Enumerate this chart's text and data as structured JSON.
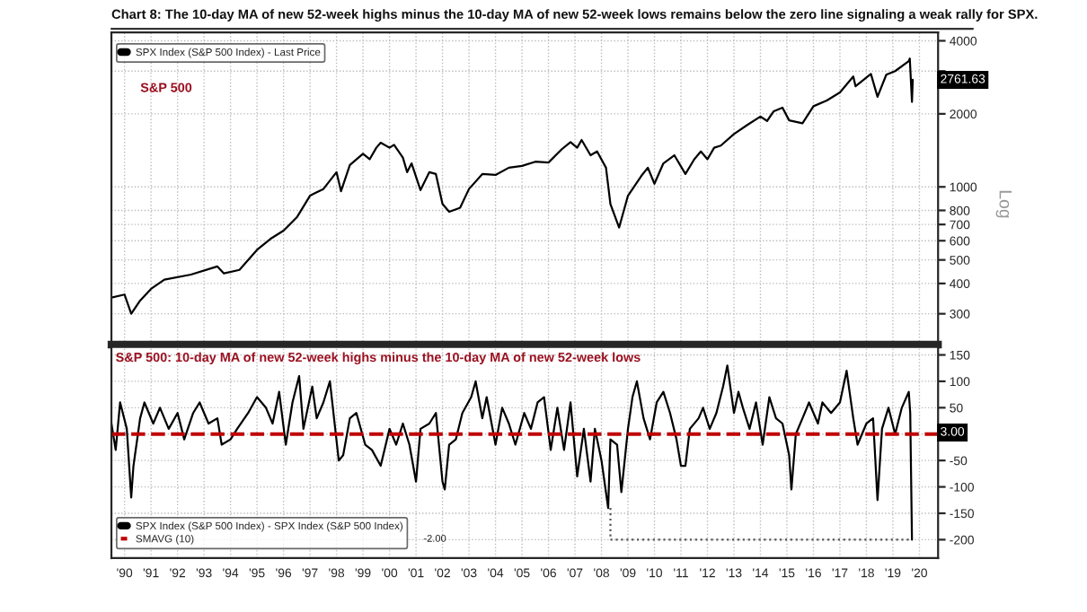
{
  "chart_data": [
    {
      "type": "line",
      "title": "Chart 8: The 10-day MA of new 52-week highs minus the 10-day MA of new 52-week lows remains below the zero line signaling a weak rally for SPX.",
      "log": "y",
      "grid": true,
      "legend": "top left",
      "tick_labels": "y",
      "xlim": [
        "1990-01-01",
        "2021-03-15"
      ],
      "ylim": [
        224,
        4330
      ],
      "xticks": [
        "1990-07-01",
        "1991-07-01",
        "1992-07-01",
        "1993-07-01",
        "1994-07-01",
        "1995-07-01",
        "1996-07-01",
        "1997-07-01",
        "1998-07-01",
        "1999-07-01",
        "2000-07-01",
        "2001-07-01",
        "2002-07-01",
        "2003-07-01",
        "2004-07-01",
        "2005-07-01",
        "2006-07-01",
        "2007-07-01",
        "2008-07-01",
        "2009-07-01",
        "2010-07-01",
        "2011-07-01",
        "2012-07-01",
        "2013-07-01",
        "2014-07-01",
        "2015-07-01",
        "2016-07-01",
        "2017-07-01",
        "2018-07-01",
        "2019-07-01",
        "2020-07-01"
      ],
      "yticks": [
        300,
        400,
        500,
        600,
        700,
        800,
        1000,
        2000,
        {
          "value": 3000,
          "label": null
        },
        4000
      ],
      "annotations": [
        "S&P 500",
        "Log",
        {
          "text": "2761.63",
          "x": "2020-03-31",
          "y": 2761.63
        }
      ],
      "series": [
        {
          "name": "SPX Index (S&P 500 Index) - Last Price",
          "color": "#000000",
          "line_style": "solid",
          "x": [
            "1990-01",
            "1990-07",
            "1990-10",
            "1991-02",
            "1991-07",
            "1992-01",
            "1993-01",
            "1994-01",
            "1994-04",
            "1994-11",
            "1995-07",
            "1996-01",
            "1996-07",
            "1997-01",
            "1997-07",
            "1997-10",
            "1998-01",
            "1998-07",
            "1998-09",
            "1999-01",
            "1999-07",
            "1999-10",
            "2000-01",
            "2000-03",
            "2000-07",
            "2000-09",
            "2001-01",
            "2001-03",
            "2001-05",
            "2001-09",
            "2002-01",
            "2002-04",
            "2002-07",
            "2002-10",
            "2003-03",
            "2003-07",
            "2004-01",
            "2004-07",
            "2005-01",
            "2005-07",
            "2006-01",
            "2006-07",
            "2007-01",
            "2007-05",
            "2007-08",
            "2007-10",
            "2008-02",
            "2008-05",
            "2008-09",
            "2008-11",
            "2009-03",
            "2009-07",
            "2010-01",
            "2010-04",
            "2010-07",
            "2010-11",
            "2011-04",
            "2011-09",
            "2012-01",
            "2012-04",
            "2012-07",
            "2012-10",
            "2013-01",
            "2013-07",
            "2014-01",
            "2014-07",
            "2014-10",
            "2015-01",
            "2015-05",
            "2015-08",
            "2016-02",
            "2016-07",
            "2017-01",
            "2017-07",
            "2018-01",
            "2018-02",
            "2018-09",
            "2018-12",
            "2019-04",
            "2019-08",
            "2020-02-05",
            "2020-02-19",
            "2020-03-20",
            "2020-03-31"
          ],
          "values": [
            350,
            360,
            300,
            340,
            380,
            415,
            435,
            470,
            440,
            455,
            550,
            610,
            660,
            750,
            920,
            950,
            980,
            1150,
            960,
            1230,
            1370,
            1300,
            1450,
            1520,
            1450,
            1490,
            1320,
            1150,
            1250,
            970,
            1150,
            1130,
            850,
            790,
            820,
            980,
            1130,
            1120,
            1200,
            1220,
            1270,
            1260,
            1430,
            1530,
            1450,
            1560,
            1350,
            1400,
            1200,
            850,
            680,
            920,
            1110,
            1200,
            1030,
            1250,
            1350,
            1130,
            1300,
            1400,
            1300,
            1450,
            1480,
            1650,
            1800,
            1950,
            1870,
            2050,
            2120,
            1880,
            1830,
            2150,
            2270,
            2450,
            2850,
            2600,
            2920,
            2350,
            2900,
            3000,
            3300,
            3380,
            2240,
            2761.63
          ]
        }
      ]
    },
    {
      "type": "line",
      "title": "S&P 500: 10-day MA of new 52-week highs minus the 10-day MA of new 52-week lows",
      "grid": true,
      "legend": "bottom left",
      "xlim": [
        "1990-01-01",
        "2021-03-15"
      ],
      "ylim": [
        -235,
        165
      ],
      "xticks": [
        {
          "value": "1990-07-01",
          "label": "'90"
        },
        {
          "value": "1991-07-01",
          "label": "'91"
        },
        {
          "value": "1992-07-01",
          "label": "'92"
        },
        {
          "value": "1993-07-01",
          "label": "'93"
        },
        {
          "value": "1994-07-01",
          "label": "'94"
        },
        {
          "value": "1995-07-01",
          "label": "'95"
        },
        {
          "value": "1996-07-01",
          "label": "'96"
        },
        {
          "value": "1997-07-01",
          "label": "'97"
        },
        {
          "value": "1998-07-01",
          "label": "'98"
        },
        {
          "value": "1999-07-01",
          "label": "'99"
        },
        {
          "value": "2000-07-01",
          "label": "'00"
        },
        {
          "value": "2001-07-01",
          "label": "'01"
        },
        {
          "value": "2002-07-01",
          "label": "'02"
        },
        {
          "value": "2003-07-01",
          "label": "'03"
        },
        {
          "value": "2004-07-01",
          "label": "'04"
        },
        {
          "value": "2005-07-01",
          "label": "'05"
        },
        {
          "value": "2006-07-01",
          "label": "'06"
        },
        {
          "value": "2007-07-01",
          "label": "'07"
        },
        {
          "value": "2008-07-01",
          "label": "'08"
        },
        {
          "value": "2009-07-01",
          "label": "'09"
        },
        {
          "value": "2010-07-01",
          "label": "'10"
        },
        {
          "value": "2011-07-01",
          "label": "'11"
        },
        {
          "value": "2012-07-01",
          "label": "'12"
        },
        {
          "value": "2013-07-01",
          "label": "'13"
        },
        {
          "value": "2014-07-01",
          "label": "'14"
        },
        {
          "value": "2015-07-01",
          "label": "'15"
        },
        {
          "value": "2016-07-01",
          "label": "'16"
        },
        {
          "value": "2017-07-01",
          "label": "'17"
        },
        {
          "value": "2018-07-01",
          "label": "'18"
        },
        {
          "value": "2019-07-01",
          "label": "'19"
        },
        {
          "value": "2020-07-01",
          "label": "'20"
        }
      ],
      "yticks": [
        -200,
        -150,
        -100,
        -50,
        {
          "value": 0,
          "label": null
        },
        50,
        100,
        150
      ],
      "annotations": [
        "-2.00",
        {
          "text": "3.00",
          "x": "2020-03-31",
          "y": 3
        }
      ],
      "series": [
        {
          "name": "SPX Index (S&P 500 Index) - SPX Index (S&P 500 Index)",
          "color": "#000000",
          "line_style": "solid",
          "x": [
            "1990-01",
            "1990-03",
            "1990-05",
            "1990-08",
            "1990-10",
            "1990-11",
            "1991-02",
            "1991-04",
            "1991-08",
            "1991-11",
            "1992-03",
            "1992-07",
            "1992-10",
            "1993-02",
            "1993-05",
            "1993-09",
            "1994-01",
            "1994-03",
            "1994-07",
            "1994-10",
            "1995-03",
            "1995-07",
            "1995-11",
            "1996-02",
            "1996-05",
            "1996-08",
            "1996-11",
            "1997-02",
            "1997-04",
            "1997-08",
            "1997-10",
            "1998-01",
            "1998-04",
            "1998-08",
            "1998-10",
            "1999-01",
            "1999-04",
            "1999-08",
            "1999-11",
            "2000-03",
            "2000-07",
            "2000-10",
            "2001-01",
            "2001-04",
            "2001-07",
            "2001-09",
            "2002-01",
            "2002-04",
            "2002-07",
            "2002-08",
            "2002-10",
            "2003-01",
            "2003-04",
            "2003-08",
            "2003-10",
            "2004-01",
            "2004-03",
            "2004-07",
            "2004-10",
            "2005-01",
            "2005-04",
            "2005-08",
            "2005-11",
            "2006-02",
            "2006-05",
            "2006-08",
            "2006-11",
            "2007-02",
            "2007-05",
            "2007-08",
            "2007-11",
            "2008-02",
            "2008-04",
            "2008-07",
            "2008-10",
            "2008-11",
            "2009-02",
            "2009-04",
            "2009-07",
            "2009-09",
            "2009-11",
            "2010-02",
            "2010-05",
            "2010-08",
            "2010-11",
            "2011-02",
            "2011-05",
            "2011-07",
            "2011-09",
            "2011-11",
            "2012-03",
            "2012-05",
            "2012-08",
            "2012-11",
            "2013-02",
            "2013-04",
            "2013-07",
            "2013-09",
            "2013-11",
            "2014-02",
            "2014-05",
            "2014-08",
            "2014-11",
            "2015-02",
            "2015-05",
            "2015-08",
            "2015-09",
            "2015-11",
            "2016-02",
            "2016-05",
            "2016-09",
            "2016-11",
            "2017-03",
            "2017-07",
            "2017-10",
            "2018-01",
            "2018-03",
            "2018-07",
            "2018-10",
            "2018-12",
            "2019-02",
            "2019-05",
            "2019-08",
            "2019-11",
            "2020-02-05",
            "2020-02-25",
            "2020-03-20"
          ],
          "values": [
            20,
            -30,
            60,
            10,
            -120,
            -60,
            30,
            60,
            20,
            50,
            10,
            40,
            -10,
            40,
            60,
            20,
            30,
            -20,
            -10,
            10,
            40,
            70,
            50,
            20,
            80,
            -20,
            60,
            110,
            10,
            90,
            30,
            60,
            100,
            -50,
            -40,
            30,
            40,
            -20,
            -30,
            -60,
            10,
            -20,
            20,
            -20,
            -90,
            10,
            20,
            40,
            -90,
            -105,
            -20,
            -10,
            40,
            70,
            100,
            30,
            70,
            -20,
            50,
            20,
            -20,
            40,
            10,
            60,
            70,
            -30,
            50,
            -30,
            60,
            -80,
            10,
            -90,
            10,
            -50,
            -140,
            -10,
            -20,
            -110,
            10,
            70,
            100,
            30,
            -10,
            60,
            80,
            40,
            -10,
            -60,
            -60,
            10,
            30,
            50,
            10,
            40,
            90,
            130,
            40,
            80,
            50,
            10,
            60,
            -20,
            70,
            30,
            20,
            -40,
            -105,
            0,
            30,
            60,
            20,
            60,
            40,
            60,
            120,
            30,
            -20,
            20,
            30,
            -125,
            10,
            50,
            0,
            50,
            80,
            40,
            -200
          ]
        },
        {
          "name": "SMAVG (10)",
          "color": "#c00000",
          "line_style": "dashed",
          "x": [
            "1990-01-01",
            "2021-03-15"
          ],
          "values": [
            0,
            0
          ]
        },
        {
          "color": "#555555",
          "line_style": "dotted",
          "x": [
            "2008-11",
            "2008-11",
            "2020-03-20"
          ],
          "values": [
            -140,
            -200,
            -200
          ]
        }
      ]
    }
  ]
}
